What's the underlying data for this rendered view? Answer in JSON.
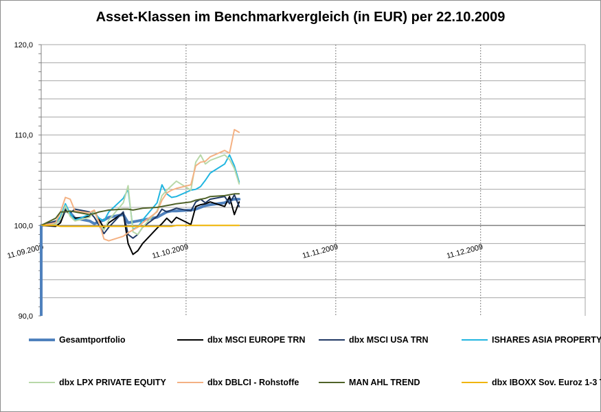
{
  "chart_data": {
    "type": "line",
    "title": "Asset-Klassen im Benchmarkvergleich (in EUR) per 22.10.2009",
    "xlabel": "",
    "ylabel": "",
    "ylim": [
      90,
      120
    ],
    "yticks": [
      "90,0",
      "100,0",
      "110,0",
      "120,0"
    ],
    "xticks": [
      "11.09.2009",
      "11.10.2009",
      "11.11.2009",
      "11.12.2009"
    ],
    "grid": true,
    "legend_position": "bottom",
    "x": [
      "11.09.",
      "14.09.",
      "15.09.",
      "16.09.",
      "17.09.",
      "18.09.",
      "21.09.",
      "22.09.",
      "23.09.",
      "24.09.",
      "25.09.",
      "28.09.",
      "29.09.",
      "30.09.",
      "01.10.",
      "02.10.",
      "05.10.",
      "06.10.",
      "07.10.",
      "08.10.",
      "09.10.",
      "12.10.",
      "13.10.",
      "14.10.",
      "15.10.",
      "16.10.",
      "19.10.",
      "20.10.",
      "21.10.",
      "22.10."
    ],
    "series": [
      {
        "name": "Gesamtportfolio",
        "color": "#4f81bd",
        "width": 4,
        "values": [
          100.0,
          100.3,
          100.6,
          101.8,
          101.4,
          100.8,
          100.5,
          100.2,
          100.4,
          100.6,
          100.9,
          101.2,
          100.3,
          100.4,
          100.5,
          100.6,
          100.9,
          101.2,
          101.5,
          101.6,
          101.6,
          101.7,
          101.8,
          102.0,
          102.2,
          102.3,
          102.5,
          102.8,
          102.9,
          102.9
        ]
      },
      {
        "name": "dbx MSCI EUROPE TRN",
        "color": "#000000",
        "width": 2,
        "values": [
          100.0,
          99.9,
          100.3,
          101.7,
          101.2,
          100.8,
          101.0,
          101.6,
          100.6,
          99.7,
          100.3,
          101.4,
          98.0,
          96.8,
          97.2,
          98.0,
          99.7,
          100.2,
          100.8,
          100.3,
          100.9,
          100.1,
          102.1,
          102.3,
          102.4,
          102.6,
          102.1,
          103.2,
          101.2,
          102.6
        ]
      },
      {
        "name": "dbx MSCI USA TRN",
        "color": "#1f3864",
        "width": 2,
        "values": [
          100.0,
          100.5,
          100.8,
          101.6,
          101.4,
          101.8,
          101.5,
          100.9,
          100.0,
          99.1,
          99.8,
          101.5,
          99.0,
          98.6,
          99.0,
          99.8,
          101.0,
          101.8,
          101.5,
          101.7,
          101.9,
          101.6,
          102.6,
          102.9,
          102.5,
          102.9,
          103.2,
          102.4,
          103.4,
          102.1
        ]
      },
      {
        "name": "ISHARES ASIA PROPERTY",
        "color": "#1fb5e0",
        "width": 2,
        "values": [
          100.0,
          100.2,
          101.0,
          102.4,
          101.3,
          100.6,
          101.2,
          101.4,
          100.8,
          100.5,
          101.5,
          103.0,
          104.0,
          99.6,
          99.8,
          100.6,
          102.5,
          104.5,
          103.5,
          103.1,
          103.2,
          103.9,
          104.0,
          104.3,
          105.0,
          105.8,
          106.8,
          107.8,
          106.6,
          104.8
        ]
      },
      {
        "name": "dbx LPX PRIVATE EQUITY",
        "color": "#b8d8a8",
        "width": 2,
        "values": [
          100.0,
          100.1,
          100.7,
          102.2,
          101.0,
          100.5,
          100.9,
          101.6,
          100.2,
          99.5,
          100.6,
          102.5,
          104.4,
          99.3,
          99.0,
          99.8,
          101.6,
          103.3,
          103.9,
          104.4,
          104.9,
          103.9,
          107.0,
          107.8,
          106.8,
          107.2,
          107.8,
          107.3,
          106.3,
          104.6
        ]
      },
      {
        "name": "dbx DBLCI - Rohstoffe",
        "color": "#f4b183",
        "width": 2,
        "values": [
          100.0,
          100.3,
          101.5,
          103.1,
          102.9,
          101.6,
          101.4,
          101.7,
          100.3,
          98.5,
          98.3,
          98.8,
          99.2,
          99.5,
          99.8,
          100.3,
          101.5,
          102.8,
          103.6,
          103.9,
          104.1,
          104.5,
          106.6,
          107.0,
          107.1,
          107.6,
          108.3,
          108.0,
          110.6,
          110.3
        ]
      },
      {
        "name": "MAN AHL TREND",
        "color": "#4f6228",
        "width": 2,
        "values": [
          100.0,
          100.8,
          101.5,
          101.5,
          101.6,
          101.5,
          101.2,
          101.3,
          101.5,
          101.6,
          101.7,
          101.8,
          101.8,
          101.7,
          101.8,
          101.9,
          102.0,
          102.1,
          102.2,
          102.3,
          102.4,
          102.6,
          102.8,
          102.9,
          103.0,
          103.2,
          103.3,
          103.4,
          103.5,
          103.5
        ]
      },
      {
        "name": "dbx IBOXX Sov. Euroz 1-3 T",
        "color": "#f0b400",
        "width": 2,
        "values": [
          100.0,
          100.0,
          99.9,
          99.9,
          99.9,
          99.9,
          99.9,
          99.9,
          99.9,
          99.9,
          99.9,
          99.9,
          99.9,
          99.9,
          99.9,
          99.9,
          99.9,
          99.9,
          99.9,
          99.9,
          100.0,
          100.0,
          100.0,
          100.0,
          100.0,
          100.0,
          100.0,
          100.0,
          100.0,
          100.0
        ]
      }
    ]
  }
}
